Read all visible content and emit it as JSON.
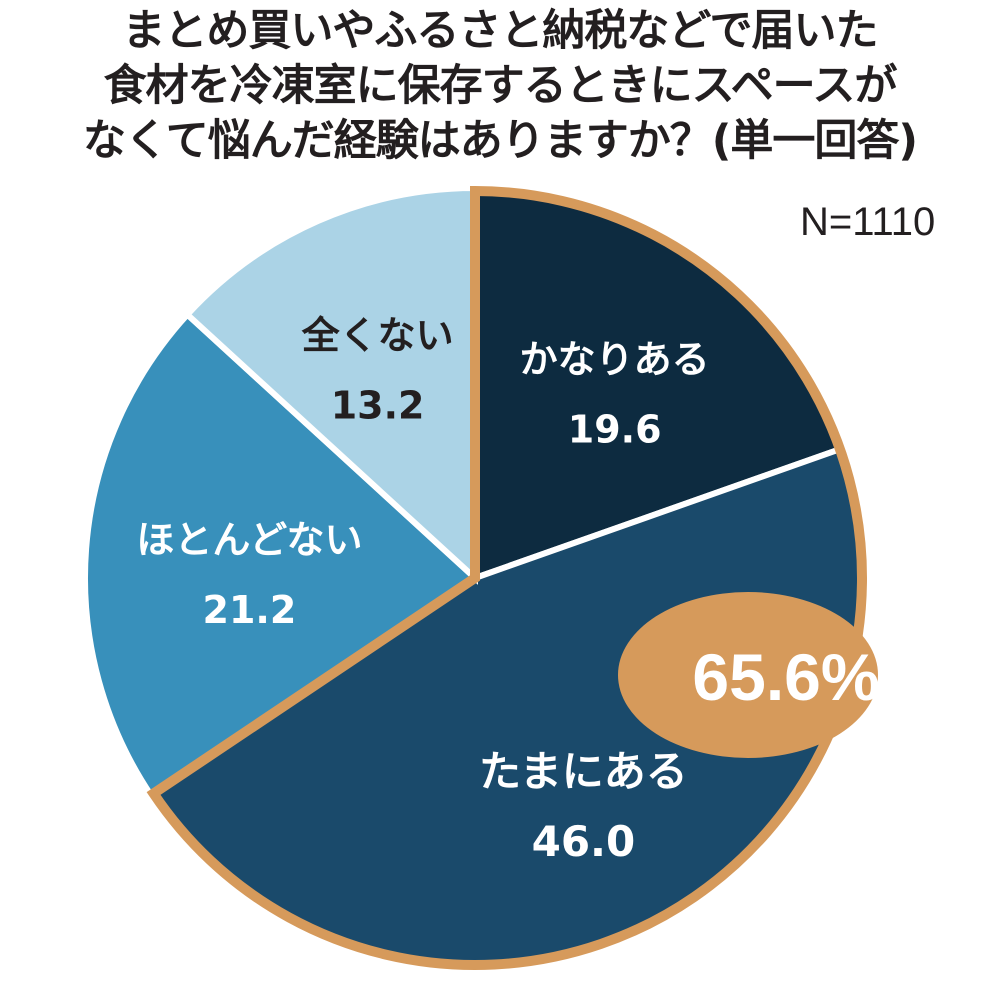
{
  "title_lines": [
    "まとめ買いやふるさと納税などで届いた",
    "食材を冷凍室に保存するときにスペースが",
    "なくて悩んだ経験はありますか？(単一回答)"
  ],
  "n_label": "N=1110",
  "highlight_label": "65.6%",
  "chart_data": {
    "type": "pie",
    "title": "まとめ買いやふるさと納税などで届いた食材を冷凍室に保存するときにスペースがなくて悩んだ経験はありますか？(単一回答)",
    "start": "12 o'clock",
    "direction": "clockwise",
    "slices": [
      {
        "label": "かなりある",
        "value": 19.6,
        "value_label": "19.6",
        "color": "#0d2b40"
      },
      {
        "label": "たまにある",
        "value": 46.0,
        "value_label": "46.0",
        "color": "#1a4a6b"
      },
      {
        "label": "ほとんどない",
        "value": 21.2,
        "value_label": "21.2",
        "color": "#3890bb"
      },
      {
        "label": "全くない",
        "value": 13.2,
        "value_label": "13.2",
        "color": "#abd3e6"
      }
    ],
    "highlight": {
      "slices": [
        "かなりある",
        "たまにある"
      ],
      "total_label": "65.6%",
      "color": "#d69a5b"
    }
  }
}
